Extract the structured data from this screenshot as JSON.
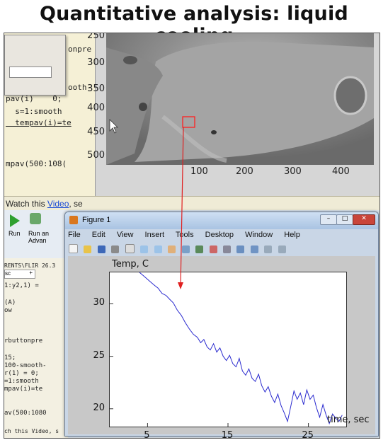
{
  "slide": {
    "title": "Quantitative analysis: liquid cooling"
  },
  "top_editor": {
    "lines": [
      "onpre",
      "ooth-",
      "pav(i)    0;",
      "  s=1:smooth",
      "  tempav(i)=te",
      "",
      "",
      "mpav(500:108("
    ]
  },
  "top_figure": {
    "y_ticks": [
      "250",
      "300",
      "350",
      "400",
      "450",
      "500"
    ],
    "x_ticks": [
      "100",
      "200",
      "300",
      "400"
    ]
  },
  "status_bar": {
    "prefix": "Watch this ",
    "link": "Video",
    "suffix": ", se"
  },
  "matlab_toolbar": {
    "run_label": "Run",
    "run_advance_label": "Run an\nAdvan"
  },
  "left_pane": {
    "path": "RENTS\\FLIR 26.3",
    "tab": "sc",
    "lines": [
      "1:y2,1) =",
      "",
      "(A)",
      "ow",
      "",
      "",
      "",
      "rbuttonpre",
      "",
      "15;",
      "100-smooth-",
      "r(1) = 0;",
      "=1:smooth",
      "mpav(i)=te",
      "",
      "",
      "av(500:1080",
      "",
      "ch this Video, s"
    ]
  },
  "figure1": {
    "window_title": "Figure 1",
    "menu": [
      "File",
      "Edit",
      "View",
      "Insert",
      "Tools",
      "Desktop",
      "Window",
      "Help"
    ]
  },
  "chart_data": {
    "type": "line",
    "ylabel": "Temp, C",
    "xlabel": "time, sec",
    "xlim": [
      0.3,
      29.7
    ],
    "ylim": [
      18.3,
      33.0
    ],
    "x_ticks": [
      5,
      15,
      25
    ],
    "y_ticks": [
      20,
      25,
      30
    ],
    "series": [
      {
        "color": "#2b2bcf",
        "points": [
          [
            4.0,
            33.0
          ],
          [
            4.6,
            32.6
          ],
          [
            5.2,
            32.2
          ],
          [
            5.8,
            31.8
          ],
          [
            6.3,
            31.5
          ],
          [
            6.8,
            31.0
          ],
          [
            7.3,
            30.8
          ],
          [
            7.8,
            30.4
          ],
          [
            8.2,
            30.1
          ],
          [
            8.7,
            29.4
          ],
          [
            9.2,
            28.9
          ],
          [
            9.7,
            28.2
          ],
          [
            10.2,
            27.6
          ],
          [
            10.7,
            27.1
          ],
          [
            11.2,
            26.8
          ],
          [
            11.6,
            26.3
          ],
          [
            12.0,
            26.6
          ],
          [
            12.4,
            25.9
          ],
          [
            12.8,
            25.6
          ],
          [
            13.2,
            26.2
          ],
          [
            13.6,
            25.4
          ],
          [
            14.0,
            25.8
          ],
          [
            14.4,
            25.0
          ],
          [
            14.8,
            24.6
          ],
          [
            15.2,
            25.1
          ],
          [
            15.6,
            24.3
          ],
          [
            16.0,
            24.0
          ],
          [
            16.4,
            24.8
          ],
          [
            16.8,
            23.6
          ],
          [
            17.2,
            23.2
          ],
          [
            17.6,
            23.8
          ],
          [
            18.0,
            22.9
          ],
          [
            18.4,
            22.6
          ],
          [
            18.8,
            23.3
          ],
          [
            19.2,
            22.2
          ],
          [
            19.6,
            21.6
          ],
          [
            20.0,
            22.1
          ],
          [
            20.4,
            21.2
          ],
          [
            20.8,
            20.6
          ],
          [
            21.2,
            21.4
          ],
          [
            21.6,
            20.3
          ],
          [
            22.0,
            19.6
          ],
          [
            22.4,
            18.8
          ],
          [
            22.8,
            20.2
          ],
          [
            23.2,
            21.7
          ],
          [
            23.6,
            20.9
          ],
          [
            24.0,
            21.5
          ],
          [
            24.4,
            20.4
          ],
          [
            24.8,
            21.8
          ],
          [
            25.2,
            20.9
          ],
          [
            25.6,
            21.3
          ],
          [
            26.0,
            20.1
          ],
          [
            26.4,
            19.2
          ],
          [
            26.8,
            20.4
          ],
          [
            27.2,
            19.4
          ],
          [
            27.6,
            18.6
          ],
          [
            28.0,
            19.5
          ],
          [
            28.4,
            19.1
          ],
          [
            28.8,
            18.8
          ],
          [
            29.2,
            19.4
          ]
        ]
      }
    ]
  }
}
